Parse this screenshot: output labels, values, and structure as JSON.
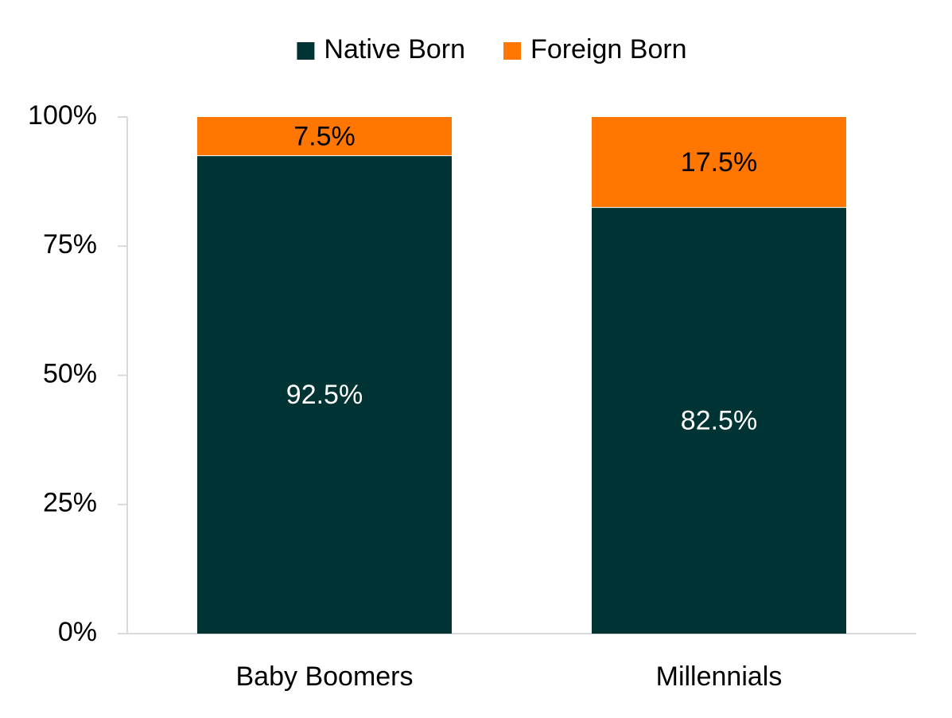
{
  "chart_data": {
    "type": "bar",
    "stacked": true,
    "categories": [
      "Baby Boomers",
      "Millennials"
    ],
    "series": [
      {
        "name": "Native Born",
        "values": [
          92.5,
          82.5
        ],
        "color": "#003333",
        "label_color": "#ffffff"
      },
      {
        "name": "Foreign Born",
        "values": [
          7.5,
          17.5
        ],
        "color": "#ff7700",
        "label_color": "#000000"
      }
    ],
    "data_labels": [
      [
        "92.5%",
        "82.5%"
      ],
      [
        "7.5%",
        "17.5%"
      ]
    ],
    "yticks": [
      0,
      25,
      50,
      75,
      100
    ],
    "ytick_labels": [
      "0%",
      "25%",
      "50%",
      "75%",
      "100%"
    ],
    "ylim": [
      0,
      100
    ],
    "title": "",
    "xlabel": "",
    "ylabel": "",
    "legend_position": "top-center",
    "grid": false,
    "axis_color": "#d9d9d9"
  }
}
